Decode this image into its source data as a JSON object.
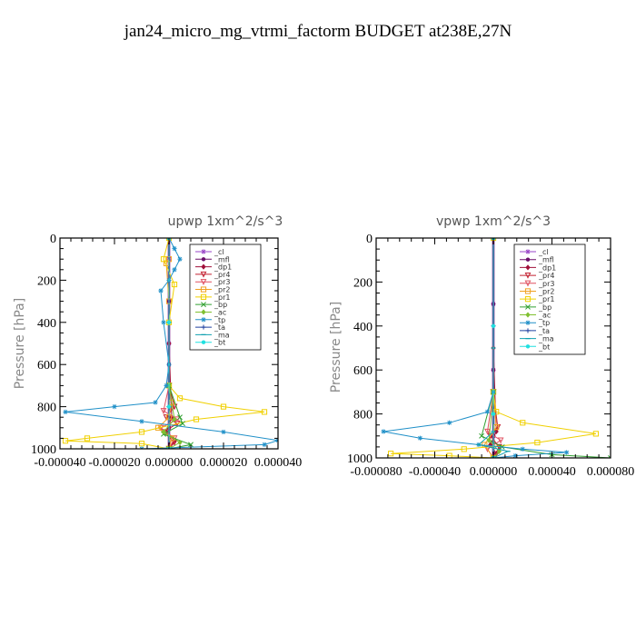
{
  "figure_title": "jan24_micro_mg_vtrmi_factorm  BUDGET at238E,27N",
  "chart_data": [
    {
      "type": "line",
      "title": "upwp   1xm^2/s^3",
      "ylabel": "Pressure [hPa]",
      "xlim": [
        -4e-05,
        4e-05
      ],
      "ylim": [
        1000,
        0
      ],
      "xticks": [
        -4e-05,
        -2e-05,
        0.0,
        2e-05,
        4e-05
      ],
      "xtick_labels": [
        "-0.000040",
        "-0.000020",
        "0.000000",
        "0.000020",
        "0.000040"
      ],
      "yticks": [
        0,
        200,
        400,
        600,
        800,
        1000
      ],
      "legend_position": "top-right",
      "series": [
        {
          "name": "_cl",
          "color": "#9a46c8",
          "points": [
            [
              0,
              0
            ],
            [
              0,
              100
            ],
            [
              0,
              300
            ],
            [
              0,
              500
            ],
            [
              0,
              700
            ],
            [
              0,
              900
            ],
            [
              0,
              1000
            ]
          ]
        },
        {
          "name": "_mfl",
          "color": "#6a0f6a",
          "points": [
            [
              0,
              0
            ],
            [
              0,
              300
            ],
            [
              0,
              600
            ],
            [
              0,
              900
            ],
            [
              0,
              1000
            ]
          ]
        },
        {
          "name": "_dp1",
          "color": "#a0103a",
          "points": [
            [
              0,
              0
            ],
            [
              0,
              500
            ],
            [
              1e-06,
              850
            ],
            [
              -1e-06,
              920
            ],
            [
              2e-06,
              960
            ],
            [
              0,
              1000
            ]
          ]
        },
        {
          "name": "_pr4",
          "color": "#c22030",
          "points": [
            [
              0,
              700
            ],
            [
              2e-06,
              800
            ],
            [
              -1e-06,
              850
            ],
            [
              3e-06,
              880
            ],
            [
              -2e-06,
              920
            ],
            [
              2e-06,
              970
            ],
            [
              0,
              1000
            ]
          ]
        },
        {
          "name": "_pr3",
          "color": "#e05060",
          "points": [
            [
              0,
              700
            ],
            [
              -2e-06,
              820
            ],
            [
              3e-06,
              860
            ],
            [
              -3e-06,
              900
            ],
            [
              2e-06,
              950
            ],
            [
              0,
              1000
            ]
          ]
        },
        {
          "name": "_pr2",
          "color": "#f0a020",
          "points": [
            [
              0,
              100
            ],
            [
              -1e-06,
              120
            ],
            [
              0,
              300
            ],
            [
              0,
              700
            ],
            [
              1e-06,
              780
            ],
            [
              0,
              850
            ],
            [
              -4e-06,
              900
            ],
            [
              1e-06,
              950
            ],
            [
              0,
              1000
            ]
          ]
        },
        {
          "name": "_pr1",
          "color": "#f0d000",
          "points": [
            [
              0,
              0
            ],
            [
              -2e-06,
              100
            ],
            [
              2e-06,
              220
            ],
            [
              0,
              400
            ],
            [
              0,
              700
            ],
            [
              4e-06,
              760
            ],
            [
              2e-05,
              800
            ],
            [
              3.5e-05,
              825
            ],
            [
              1e-05,
              860
            ],
            [
              -1e-05,
              920
            ],
            [
              -3e-05,
              950
            ],
            [
              -3.8e-05,
              962
            ],
            [
              -1e-05,
              975
            ],
            [
              0,
              1000
            ]
          ]
        },
        {
          "name": "_bp",
          "color": "#30a030",
          "points": [
            [
              0,
              700
            ],
            [
              4e-06,
              850
            ],
            [
              5e-06,
              880
            ],
            [
              -2e-06,
              930
            ],
            [
              8e-06,
              980
            ],
            [
              0,
              1000
            ]
          ]
        },
        {
          "name": "_ac",
          "color": "#80c030",
          "points": [
            [
              0,
              700
            ],
            [
              2e-06,
              860
            ],
            [
              -2e-06,
              920
            ],
            [
              4e-06,
              970
            ],
            [
              0,
              1000
            ]
          ]
        },
        {
          "name": "_tp",
          "color": "#2090c8",
          "points": [
            [
              0,
              0
            ],
            [
              2e-06,
              50
            ],
            [
              4e-06,
              100
            ],
            [
              2e-06,
              150
            ],
            [
              0,
              200
            ],
            [
              -3e-06,
              250
            ],
            [
              -2e-06,
              400
            ],
            [
              0,
              600
            ],
            [
              -1e-06,
              700
            ],
            [
              -5e-06,
              780
            ],
            [
              -2e-05,
              800
            ],
            [
              -3.8e-05,
              825
            ],
            [
              -1e-05,
              870
            ],
            [
              2e-05,
              920
            ],
            [
              4e-05,
              960
            ],
            [
              3.5e-05,
              980
            ],
            [
              -1e-05,
              1000
            ]
          ]
        },
        {
          "name": "_ta",
          "color": "#2040a0",
          "points": [
            [
              0,
              0
            ],
            [
              0,
              400
            ],
            [
              0,
              800
            ],
            [
              0,
              1000
            ]
          ]
        },
        {
          "name": "_ma",
          "color": "#10a0b0",
          "points": [
            [
              0,
              0
            ],
            [
              0,
              400
            ],
            [
              0,
              800
            ],
            [
              0,
              1000
            ]
          ]
        },
        {
          "name": "_bt",
          "color": "#20e0e0",
          "points": [
            [
              0,
              0
            ],
            [
              0,
              400
            ],
            [
              0,
              800
            ],
            [
              0,
              1000
            ]
          ]
        }
      ]
    },
    {
      "type": "line",
      "title": "vpwp   1xm^2/s^3",
      "ylabel": "Pressure [hPa]",
      "xlim": [
        -8e-05,
        8e-05
      ],
      "ylim": [
        1000,
        0
      ],
      "xticks": [
        -8e-05,
        -4e-05,
        0.0,
        4e-05,
        8e-05
      ],
      "xtick_labels": [
        "-0.000080",
        "-0.000040",
        "0.000000",
        "0.000040",
        "0.000080"
      ],
      "yticks": [
        0,
        200,
        400,
        600,
        800,
        1000
      ],
      "legend_position": "top-right",
      "series": [
        {
          "name": "_cl",
          "color": "#9a46c8",
          "points": [
            [
              0,
              0
            ],
            [
              0,
              300
            ],
            [
              0,
              600
            ],
            [
              0,
              900
            ],
            [
              0,
              1000
            ]
          ]
        },
        {
          "name": "_mfl",
          "color": "#6a0f6a",
          "points": [
            [
              0,
              0
            ],
            [
              0,
              300
            ],
            [
              0,
              600
            ],
            [
              0,
              900
            ],
            [
              0,
              1000
            ]
          ]
        },
        {
          "name": "_dp1",
          "color": "#a0103a",
          "points": [
            [
              0,
              0
            ],
            [
              0,
              500
            ],
            [
              2e-06,
              880
            ],
            [
              -2e-06,
              940
            ],
            [
              2e-06,
              980
            ],
            [
              0,
              1000
            ]
          ]
        },
        {
          "name": "_pr4",
          "color": "#c22030",
          "points": [
            [
              0,
              700
            ],
            [
              3e-06,
              860
            ],
            [
              -2e-06,
              900
            ],
            [
              4e-06,
              950
            ],
            [
              0,
              1000
            ]
          ]
        },
        {
          "name": "_pr3",
          "color": "#e05060",
          "points": [
            [
              0,
              700
            ],
            [
              -4e-06,
              880
            ],
            [
              5e-06,
              920
            ],
            [
              -4e-06,
              960
            ],
            [
              0,
              1000
            ]
          ]
        },
        {
          "name": "_pr2",
          "color": "#f0a020",
          "points": [
            [
              0,
              700
            ],
            [
              2e-06,
              860
            ],
            [
              -6e-06,
              940
            ],
            [
              0,
              1000
            ]
          ]
        },
        {
          "name": "_pr1",
          "color": "#f0d000",
          "points": [
            [
              0,
              0
            ],
            [
              0,
              700
            ],
            [
              2e-06,
              790
            ],
            [
              2e-05,
              840
            ],
            [
              7e-05,
              890
            ],
            [
              3e-05,
              930
            ],
            [
              -2e-05,
              960
            ],
            [
              -7e-05,
              980
            ],
            [
              -3e-05,
              990
            ],
            [
              0,
              1000
            ]
          ]
        },
        {
          "name": "_bp",
          "color": "#30a030",
          "points": [
            [
              0,
              700
            ],
            [
              -8e-06,
              900
            ],
            [
              6e-06,
              950
            ],
            [
              4e-05,
              985
            ],
            [
              8e-05,
              1000
            ]
          ]
        },
        {
          "name": "_ac",
          "color": "#80c030",
          "points": [
            [
              0,
              700
            ],
            [
              -3e-06,
              920
            ],
            [
              4e-06,
              970
            ],
            [
              0,
              1000
            ]
          ]
        },
        {
          "name": "_tp",
          "color": "#2090c8",
          "points": [
            [
              0,
              0
            ],
            [
              0,
              700
            ],
            [
              -4e-06,
              790
            ],
            [
              -3e-05,
              840
            ],
            [
              -7.5e-05,
              880
            ],
            [
              -5e-05,
              910
            ],
            [
              -1e-05,
              940
            ],
            [
              2e-05,
              960
            ],
            [
              5e-05,
              975
            ],
            [
              1.5e-05,
              990
            ],
            [
              0,
              1000
            ]
          ]
        },
        {
          "name": "_ta",
          "color": "#2040a0",
          "points": [
            [
              0,
              0
            ],
            [
              0,
              400
            ],
            [
              0,
              800
            ],
            [
              0,
              1000
            ]
          ]
        },
        {
          "name": "_ma",
          "color": "#10a0b0",
          "points": [
            [
              0,
              0
            ],
            [
              0,
              500
            ],
            [
              0,
              880
            ],
            [
              -1e-05,
              940
            ],
            [
              1e-05,
              970
            ],
            [
              0,
              1000
            ]
          ]
        },
        {
          "name": "_bt",
          "color": "#20e0e0",
          "points": [
            [
              0,
              0
            ],
            [
              0,
              400
            ],
            [
              0,
              800
            ],
            [
              0,
              1000
            ]
          ]
        }
      ]
    }
  ]
}
